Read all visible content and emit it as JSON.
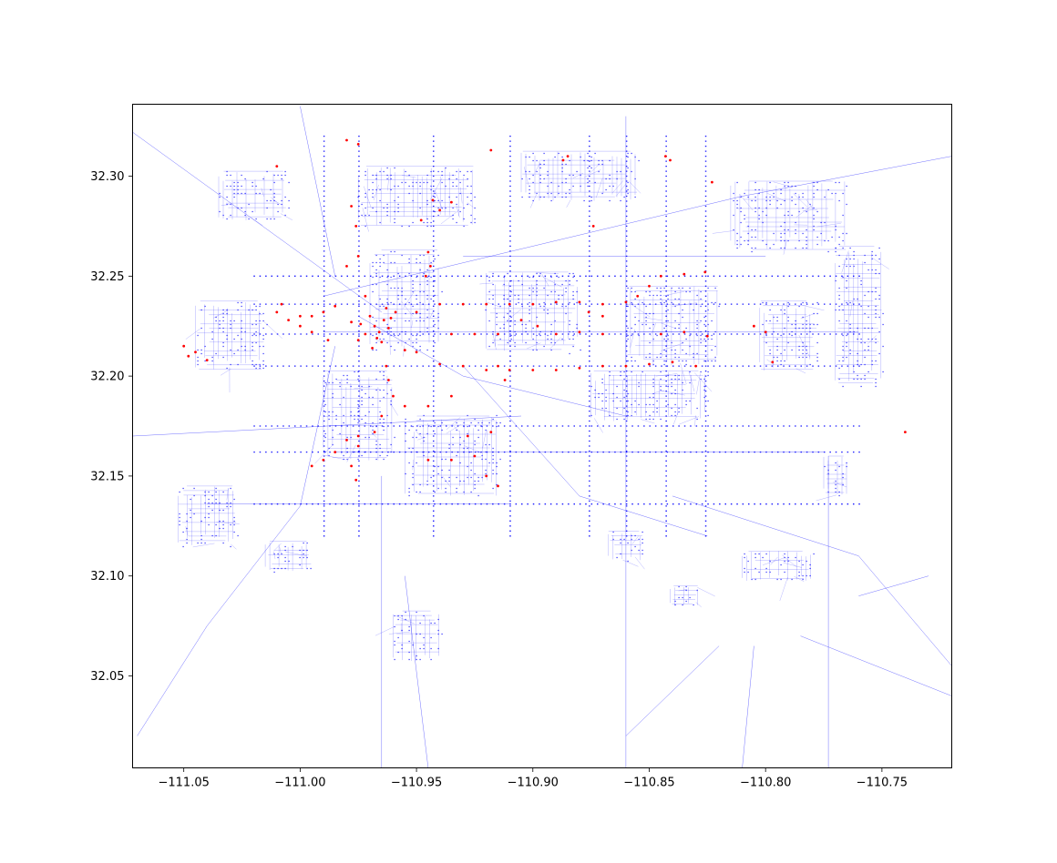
{
  "chart_data": {
    "type": "scatter",
    "title": "",
    "xlabel": "",
    "ylabel": "",
    "xlim": [
      -111.072,
      -110.72
    ],
    "ylim": [
      32.004,
      32.336
    ],
    "x_ticks": [
      {
        "value": -111.05,
        "label": "−111.05"
      },
      {
        "value": -111.0,
        "label": "−111.00"
      },
      {
        "value": -110.95,
        "label": "−110.95"
      },
      {
        "value": -110.9,
        "label": "−110.90"
      },
      {
        "value": -110.85,
        "label": "−110.85"
      },
      {
        "value": -110.8,
        "label": "−110.80"
      },
      {
        "value": -110.75,
        "label": "−110.75"
      }
    ],
    "y_ticks": [
      {
        "value": 32.05,
        "label": "32.05"
      },
      {
        "value": 32.1,
        "label": "32.10"
      },
      {
        "value": 32.15,
        "label": "32.15"
      },
      {
        "value": 32.2,
        "label": "32.20"
      },
      {
        "value": 32.25,
        "label": "32.25"
      },
      {
        "value": 32.3,
        "label": "32.30"
      }
    ],
    "grid": false,
    "legend": "none",
    "colors": {
      "network": "#0000ff",
      "highlight": "#ff0000",
      "frame": "#000000"
    },
    "series": [
      {
        "color": "#0000ff",
        "kind": "network-edges",
        "segments": [
          [
            [
              -111.072,
              32.322
            ],
            [
              -110.965,
              32.232
            ]
          ],
          [
            [
              -111.072,
              32.17
            ],
            [
              -110.905,
              32.18
            ]
          ],
          [
            [
              -111.07,
              32.02
            ],
            [
              -111.04,
              32.075
            ],
            [
              -111.0,
              32.135
            ],
            [
              -110.985,
              32.215
            ]
          ],
          [
            [
              -111.0,
              32.335
            ],
            [
              -110.985,
              32.25
            ]
          ],
          [
            [
              -110.975,
              32.23
            ],
            [
              -110.93,
              32.2
            ],
            [
              -110.86,
              32.18
            ]
          ],
          [
            [
              -110.93,
              32.205
            ],
            [
              -110.88,
              32.14
            ],
            [
              -110.825,
              32.12
            ]
          ],
          [
            [
              -110.84,
              32.14
            ],
            [
              -110.76,
              32.11
            ],
            [
              -110.72,
              32.055
            ]
          ],
          [
            [
              -110.72,
              32.31
            ],
            [
              -110.81,
              32.29
            ],
            [
              -110.99,
              32.24
            ]
          ],
          [
            [
              -110.965,
              32.15
            ],
            [
              -110.965,
              32.004
            ]
          ],
          [
            [
              -110.955,
              32.1
            ],
            [
              -110.945,
              32.004
            ]
          ],
          [
            [
              -110.86,
              32.004
            ],
            [
              -110.86,
              32.33
            ]
          ],
          [
            [
              -110.773,
              32.004
            ],
            [
              -110.773,
              32.16
            ]
          ],
          [
            [
              -110.86,
              32.02
            ],
            [
              -110.82,
              32.065
            ]
          ],
          [
            [
              -110.81,
              32.004
            ],
            [
              -110.805,
              32.065
            ]
          ],
          [
            [
              -110.785,
              32.07
            ],
            [
              -110.72,
              32.04
            ]
          ],
          [
            [
              -110.76,
              32.09
            ],
            [
              -110.73,
              32.1
            ]
          ],
          [
            [
              -110.985,
              32.162
            ],
            [
              -110.775,
              32.162
            ]
          ],
          [
            [
              -111.04,
              32.136
            ],
            [
              -110.91,
              32.136
            ]
          ],
          [
            [
              -110.93,
              32.26
            ],
            [
              -110.8,
              32.26
            ]
          ],
          [
            [
              -110.99,
              32.222
            ],
            [
              -110.76,
              32.222
            ]
          ]
        ]
      },
      {
        "color": "#0000ff",
        "kind": "network-nodes",
        "clusters": [
          {
            "center": [
              -110.955,
              32.238
            ],
            "extent": [
              0.03,
              0.05
            ]
          },
          {
            "center": [
              -110.9,
              32.232
            ],
            "extent": [
              0.04,
              0.04
            ]
          },
          {
            "center": [
              -110.84,
              32.225
            ],
            "extent": [
              0.04,
              0.04
            ]
          },
          {
            "center": [
              -110.79,
              32.22
            ],
            "extent": [
              0.025,
              0.035
            ]
          },
          {
            "center": [
              -110.975,
              32.18
            ],
            "extent": [
              0.03,
              0.045
            ]
          },
          {
            "center": [
              -110.935,
              32.16
            ],
            "extent": [
              0.04,
              0.04
            ]
          },
          {
            "center": [
              -111.03,
              32.22
            ],
            "extent": [
              0.03,
              0.035
            ]
          },
          {
            "center": [
              -111.04,
              32.13
            ],
            "extent": [
              0.025,
              0.03
            ]
          },
          {
            "center": [
              -111.02,
              32.29
            ],
            "extent": [
              0.03,
              0.025
            ]
          },
          {
            "center": [
              -110.95,
              32.29
            ],
            "extent": [
              0.05,
              0.03
            ]
          },
          {
            "center": [
              -110.88,
              32.3
            ],
            "extent": [
              0.05,
              0.025
            ]
          },
          {
            "center": [
              -110.79,
              32.28
            ],
            "extent": [
              0.05,
              0.035
            ]
          },
          {
            "center": [
              -110.76,
              32.23
            ],
            "extent": [
              0.02,
              0.07
            ]
          },
          {
            "center": [
              -110.85,
              32.19
            ],
            "extent": [
              0.05,
              0.025
            ]
          },
          {
            "center": [
              -110.795,
              32.105
            ],
            "extent": [
              0.03,
              0.015
            ]
          },
          {
            "center": [
              -110.86,
              32.115
            ],
            "extent": [
              0.015,
              0.015
            ]
          },
          {
            "center": [
              -110.835,
              32.09
            ],
            "extent": [
              0.012,
              0.01
            ]
          },
          {
            "center": [
              -110.95,
              32.07
            ],
            "extent": [
              0.02,
              0.025
            ]
          },
          {
            "center": [
              -111.005,
              32.11
            ],
            "extent": [
              0.02,
              0.015
            ]
          },
          {
            "center": [
              -110.77,
              32.15
            ],
            "extent": [
              0.01,
              0.02
            ]
          }
        ]
      },
      {
        "color": "#ff0000",
        "kind": "highlighted-nodes",
        "points": [
          [
            -110.968,
            32.225
          ],
          [
            -110.966,
            32.222
          ],
          [
            -110.964,
            32.228
          ],
          [
            -110.97,
            32.23
          ],
          [
            -110.972,
            32.221
          ],
          [
            -110.962,
            32.224
          ],
          [
            -110.967,
            32.219
          ],
          [
            -110.974,
            32.226
          ],
          [
            -110.959,
            32.232
          ],
          [
            -110.961,
            32.229
          ],
          [
            -110.965,
            32.217
          ],
          [
            -110.969,
            32.214
          ],
          [
            -110.975,
            32.218
          ],
          [
            -110.978,
            32.227
          ],
          [
            -110.963,
            32.234
          ],
          [
            -110.978,
            32.285
          ],
          [
            -110.976,
            32.275
          ],
          [
            -110.975,
            32.26
          ],
          [
            -110.98,
            32.255
          ],
          [
            -110.972,
            32.24
          ],
          [
            -110.985,
            32.235
          ],
          [
            -110.99,
            32.232
          ],
          [
            -110.995,
            32.23
          ],
          [
            -111.0,
            32.23
          ],
          [
            -111.005,
            32.228
          ],
          [
            -111.01,
            32.232
          ],
          [
            -110.95,
            32.232
          ],
          [
            -110.94,
            32.236
          ],
          [
            -110.93,
            32.236
          ],
          [
            -110.92,
            32.236
          ],
          [
            -110.91,
            32.236
          ],
          [
            -110.9,
            32.236
          ],
          [
            -110.89,
            32.237
          ],
          [
            -110.88,
            32.237
          ],
          [
            -110.87,
            32.236
          ],
          [
            -110.86,
            32.237
          ],
          [
            -110.855,
            32.24
          ],
          [
            -110.85,
            32.245
          ],
          [
            -110.845,
            32.25
          ],
          [
            -110.835,
            32.251
          ],
          [
            -110.826,
            32.252
          ],
          [
            -110.945,
            32.262
          ],
          [
            -110.944,
            32.255
          ],
          [
            -110.946,
            32.25
          ],
          [
            -110.955,
            32.213
          ],
          [
            -110.95,
            32.212
          ],
          [
            -110.94,
            32.206
          ],
          [
            -110.93,
            32.205
          ],
          [
            -110.92,
            32.203
          ],
          [
            -110.91,
            32.203
          ],
          [
            -110.9,
            32.203
          ],
          [
            -110.89,
            32.203
          ],
          [
            -110.88,
            32.204
          ],
          [
            -110.87,
            32.205
          ],
          [
            -110.86,
            32.205
          ],
          [
            -110.85,
            32.206
          ],
          [
            -110.84,
            32.207
          ],
          [
            -110.83,
            32.205
          ],
          [
            -110.845,
            32.221
          ],
          [
            -110.835,
            32.222
          ],
          [
            -110.825,
            32.22
          ],
          [
            -110.87,
            32.221
          ],
          [
            -110.88,
            32.222
          ],
          [
            -110.89,
            32.221
          ],
          [
            -110.915,
            32.221
          ],
          [
            -110.925,
            32.221
          ],
          [
            -110.935,
            32.221
          ],
          [
            -110.963,
            32.205
          ],
          [
            -110.962,
            32.198
          ],
          [
            -110.96,
            32.19
          ],
          [
            -110.955,
            32.185
          ],
          [
            -110.965,
            32.18
          ],
          [
            -110.968,
            32.172
          ],
          [
            -110.975,
            32.17
          ],
          [
            -110.98,
            32.168
          ],
          [
            -110.985,
            32.162
          ],
          [
            -110.99,
            32.158
          ],
          [
            -110.995,
            32.155
          ],
          [
            -110.975,
            32.165
          ],
          [
            -110.978,
            32.155
          ],
          [
            -110.976,
            32.148
          ],
          [
            -110.945,
            32.158
          ],
          [
            -110.935,
            32.158
          ],
          [
            -110.925,
            32.16
          ],
          [
            -110.92,
            32.15
          ],
          [
            -110.915,
            32.145
          ],
          [
            -110.945,
            32.185
          ],
          [
            -110.935,
            32.19
          ],
          [
            -110.918,
            32.172
          ],
          [
            -110.928,
            32.17
          ],
          [
            -111.0,
            32.225
          ],
          [
            -111.008,
            32.236
          ],
          [
            -110.988,
            32.218
          ],
          [
            -110.995,
            32.222
          ],
          [
            -111.05,
            32.215
          ],
          [
            -111.048,
            32.21
          ],
          [
            -111.045,
            32.212
          ],
          [
            -111.04,
            32.208
          ],
          [
            -111.01,
            32.305
          ],
          [
            -110.98,
            32.318
          ],
          [
            -110.975,
            32.316
          ],
          [
            -110.948,
            32.278
          ],
          [
            -110.943,
            32.288
          ],
          [
            -110.94,
            32.283
          ],
          [
            -110.935,
            32.287
          ],
          [
            -110.918,
            32.313
          ],
          [
            -110.887,
            32.308
          ],
          [
            -110.885,
            32.31
          ],
          [
            -110.874,
            32.275
          ],
          [
            -110.843,
            32.31
          ],
          [
            -110.841,
            32.308
          ],
          [
            -110.823,
            32.297
          ],
          [
            -110.8,
            32.222
          ],
          [
            -110.805,
            32.225
          ],
          [
            -110.797,
            32.207
          ],
          [
            -110.915,
            32.205
          ],
          [
            -110.912,
            32.198
          ],
          [
            -110.905,
            32.228
          ],
          [
            -110.898,
            32.225
          ],
          [
            -110.87,
            32.23
          ],
          [
            -110.876,
            32.232
          ],
          [
            -110.74,
            32.172
          ]
        ]
      }
    ]
  }
}
